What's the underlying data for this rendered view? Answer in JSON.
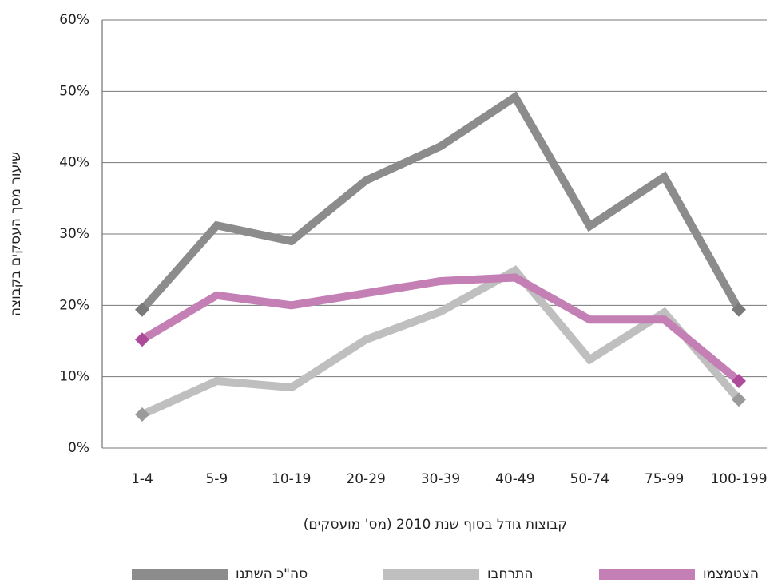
{
  "chart_data": {
    "type": "line",
    "y_label": "שיעור מסך העסקים בקבוצה",
    "x_label": "קבוצות גודל בסוף שנת 2010 (מס' מועסקים)",
    "categories": [
      "1-4",
      "5-9",
      "10-19",
      "20-29",
      "30-39",
      "40-49",
      "50-74",
      "75-99",
      "100-199"
    ],
    "series": [
      {
        "name": "סה\"כ השתנו",
        "color": "#8c8c8c",
        "marker_color": "#7a7a7a",
        "values": [
          19.4,
          31.2,
          29,
          37.5,
          42.3,
          49.2,
          31.1,
          38,
          19.4
        ]
      },
      {
        "name": "התרחבו",
        "color": "#bfbfbf",
        "marker_color": "#9a9a9a",
        "values": [
          4.7,
          9.4,
          8.5,
          15.2,
          19.1,
          24.9,
          12.4,
          19,
          6.8
        ]
      },
      {
        "name": "הצטמצמו",
        "color": "#c47fb5",
        "marker_color": "#ad4a9a",
        "values": [
          15.2,
          21.4,
          20,
          21.7,
          23.4,
          23.9,
          18,
          18,
          9.4
        ]
      }
    ],
    "ylim": [
      0,
      60
    ],
    "yticks": [
      {
        "value": 0,
        "label": "0%"
      },
      {
        "value": 10,
        "label": "10%"
      },
      {
        "value": 20,
        "label": "20%"
      },
      {
        "value": 30,
        "label": "30%"
      },
      {
        "value": 40,
        "label": "40%"
      },
      {
        "value": 50,
        "label": "50%"
      },
      {
        "value": 60,
        "label": "60%"
      }
    ],
    "grid": true,
    "legend": "bottom"
  }
}
